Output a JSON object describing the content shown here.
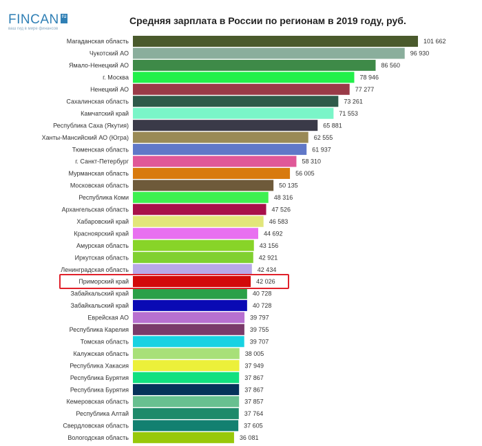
{
  "logo": {
    "text": "FINCAN",
    "box": "ru",
    "tagline": "ваш гид в мире финансов"
  },
  "chart_data": {
    "type": "bar",
    "orientation": "horizontal",
    "title": "Средняя зарплата в России по регионам в 2019 году, руб.",
    "xlabel": "",
    "ylabel": "",
    "xlim": [
      0,
      101662
    ],
    "highlighted": "Приморский край",
    "bars": [
      {
        "label": "Магаданская область",
        "value": 101662,
        "text": "101 662",
        "color": "#4a5a2c"
      },
      {
        "label": "Чукотский АО",
        "value": 96930,
        "text": "96 930",
        "color": "#8aae9c"
      },
      {
        "label": "Ямало-Ненецкий АО",
        "value": 86560,
        "text": "86 560",
        "color": "#3e8a48"
      },
      {
        "label": "г. Москва",
        "value": 78946,
        "text": "78 946",
        "color": "#22f04a"
      },
      {
        "label": "Ненецкий АО",
        "value": 77277,
        "text": "77 277",
        "color": "#9a3a48"
      },
      {
        "label": "Сахалинская область",
        "value": 73261,
        "text": "73 261",
        "color": "#2e5a4a"
      },
      {
        "label": "Камчатский край",
        "value": 71553,
        "text": "71 553",
        "color": "#7af5c8"
      },
      {
        "label": "Республика Саха (Якутия)",
        "value": 65881,
        "text": "65 881",
        "color": "#3a3a48"
      },
      {
        "label": "Ханты-Мансийский АО (Югра)",
        "value": 62555,
        "text": "62 555",
        "color": "#9a8a56"
      },
      {
        "label": "Тюменская область",
        "value": 61937,
        "text": "61 937",
        "color": "#6078c8"
      },
      {
        "label": "г. Санкт-Петербург",
        "value": 58310,
        "text": "58 310",
        "color": "#e05898"
      },
      {
        "label": "Мурманская область",
        "value": 56005,
        "text": "56 005",
        "color": "#d87a0e"
      },
      {
        "label": "Московская область",
        "value": 50135,
        "text": "50 135",
        "color": "#6e5a3a"
      },
      {
        "label": "Республика Коми",
        "value": 48316,
        "text": "48 316",
        "color": "#3ef050"
      },
      {
        "label": "Архангельская область",
        "value": 47526,
        "text": "47 526",
        "color": "#a8104a"
      },
      {
        "label": "Хабаровский край",
        "value": 46583,
        "text": "46 583",
        "color": "#e2e67a"
      },
      {
        "label": "Красноярский край",
        "value": 44692,
        "text": "44 692",
        "color": "#e870f0"
      },
      {
        "label": "Амурская область",
        "value": 43156,
        "text": "43 156",
        "color": "#88d428"
      },
      {
        "label": "Иркутская область",
        "value": 42921,
        "text": "42 921",
        "color": "#80d030"
      },
      {
        "label": "Ленинградская область",
        "value": 42434,
        "text": "42 434",
        "color": "#b8a8e8"
      },
      {
        "label": "Приморский край",
        "value": 42026,
        "text": "42 026",
        "color": "#d20a0a"
      },
      {
        "label": "Забайкальский край",
        "value": 40728,
        "text": "40 728",
        "color": "#2aa048"
      },
      {
        "label": "Забайкальский край",
        "value": 40728,
        "text": "40 728",
        "color": "#0a0ab4"
      },
      {
        "label": "Еврейская АО",
        "value": 39797,
        "text": "39 797",
        "color": "#b870d0"
      },
      {
        "label": "Республика Карелия",
        "value": 39755,
        "text": "39 755",
        "color": "#7a3a6a"
      },
      {
        "label": "Томская область",
        "value": 39707,
        "text": "39 707",
        "color": "#18d2e2"
      },
      {
        "label": "Калужская область",
        "value": 38005,
        "text": "38 005",
        "color": "#a8e078"
      },
      {
        "label": "Республика Хакасия",
        "value": 37949,
        "text": "37 949",
        "color": "#ecf03a"
      },
      {
        "label": "Республика Бурятия",
        "value": 37867,
        "text": "37 867",
        "color": "#12e080"
      },
      {
        "label": "Республика Бурятия",
        "value": 37867,
        "text": "37 867",
        "color": "#06325a"
      },
      {
        "label": "Кемеровская область",
        "value": 37857,
        "text": "37 857",
        "color": "#68c090"
      },
      {
        "label": "Республика Алтай",
        "value": 37764,
        "text": "37 764",
        "color": "#1e8a6a"
      },
      {
        "label": "Свердловская область",
        "value": 37605,
        "text": "37 605",
        "color": "#128070"
      },
      {
        "label": "Вологодская область",
        "value": 36081,
        "text": "36 081",
        "color": "#98c80a"
      }
    ]
  }
}
